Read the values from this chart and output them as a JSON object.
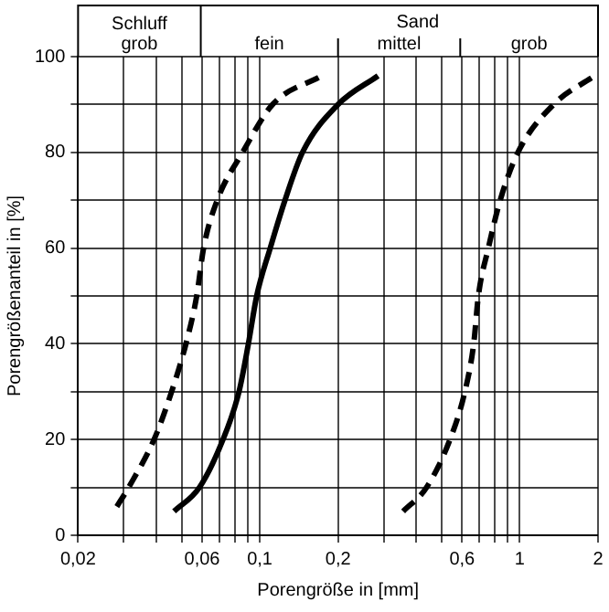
{
  "chart_data": {
    "type": "line",
    "xlabel": "Porengröße in [mm]",
    "ylabel": "Porengrößenanteil in [%]",
    "log": "x",
    "xlim": [
      0.02,
      2
    ],
    "ylim": [
      0,
      100
    ],
    "xticks": [
      {
        "value": 0.02,
        "label": "0,02"
      },
      {
        "value": 0.03,
        "label": null
      },
      {
        "value": 0.04,
        "label": null
      },
      {
        "value": 0.05,
        "label": null
      },
      {
        "value": 0.06,
        "label": "0,06"
      },
      {
        "value": 0.07,
        "label": null
      },
      {
        "value": 0.08,
        "label": null
      },
      {
        "value": 0.09,
        "label": null
      },
      {
        "value": 0.1,
        "label": "0,1"
      },
      {
        "value": 0.2,
        "label": "0,2"
      },
      {
        "value": 0.3,
        "label": null
      },
      {
        "value": 0.4,
        "label": null
      },
      {
        "value": 0.5,
        "label": null
      },
      {
        "value": 0.6,
        "label": "0,6"
      },
      {
        "value": 0.7,
        "label": null
      },
      {
        "value": 0.8,
        "label": null
      },
      {
        "value": 0.9,
        "label": null
      },
      {
        "value": 1,
        "label": "1"
      },
      {
        "value": 2,
        "label": "2"
      }
    ],
    "yticks": [
      0,
      {
        "value": 10,
        "label": null
      },
      20,
      {
        "value": 30,
        "label": null
      },
      40,
      {
        "value": 50,
        "label": null
      },
      60,
      {
        "value": 70,
        "label": null
      },
      80,
      {
        "value": 90,
        "label": null
      },
      100
    ],
    "grid": true,
    "legend": false,
    "marker": "none",
    "annotations": [
      "Schluff\ngrob",
      "fein",
      "mittel",
      "grob",
      "Sand"
    ],
    "series": [
      {
        "color": "#000000",
        "line_style": "dashed",
        "x": [
          0.0282,
          0.0313,
          0.0392,
          0.0458,
          0.052,
          0.0572,
          0.0608,
          0.0686,
          0.0859,
          0.112,
          0.173
        ],
        "values": [
          6,
          10,
          20,
          30,
          40,
          50,
          60,
          70,
          80,
          90,
          96
        ]
      },
      {
        "color": "#000000",
        "line_style": "solid",
        "x": [
          0.0468,
          0.0586,
          0.0722,
          0.0832,
          0.0904,
          0.0973,
          0.1097,
          0.125,
          0.146,
          0.2,
          0.285
        ],
        "values": [
          5,
          10,
          20,
          30,
          40,
          50,
          60,
          70,
          80,
          90,
          96
        ]
      },
      {
        "color": "#000000",
        "line_style": "dashed",
        "x": [
          0.356,
          0.438,
          0.539,
          0.615,
          0.665,
          0.693,
          0.757,
          0.841,
          0.984,
          1.35,
          1.94
        ],
        "values": [
          5,
          10,
          20,
          30,
          40,
          50,
          60,
          70,
          80,
          90,
          96
        ]
      }
    ]
  }
}
